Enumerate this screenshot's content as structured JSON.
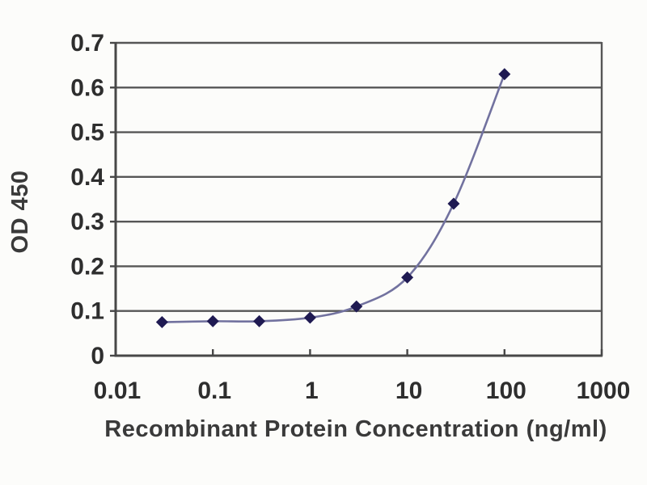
{
  "figure": {
    "type": "elisa-standard-curve",
    "background_color": "#fcfcfa"
  },
  "chart_data": {
    "type": "line",
    "x_scale": "log",
    "x": [
      0.03,
      0.1,
      0.3,
      1,
      3,
      10,
      30,
      100
    ],
    "y": [
      0.075,
      0.077,
      0.077,
      0.085,
      0.11,
      0.175,
      0.34,
      0.63
    ],
    "xlabel": "Recombinant Protein Concentration (ng/ml)",
    "ylabel": "OD 450",
    "xlim": [
      0.01,
      1000
    ],
    "ylim": [
      0,
      0.7
    ],
    "x_ticks": [
      0.01,
      0.1,
      1,
      10,
      100,
      1000
    ],
    "x_tick_labels": [
      "0.01",
      "0.1",
      "1",
      "10",
      "100",
      "1000"
    ],
    "y_ticks": [
      0,
      0.1,
      0.2,
      0.3,
      0.4,
      0.5,
      0.6,
      0.7
    ],
    "y_tick_labels": [
      "0",
      "0.1",
      "0.2",
      "0.3",
      "0.4",
      "0.5",
      "0.6",
      "0.7"
    ],
    "grid": "horizontal",
    "legend": "none",
    "marker": "diamond",
    "colors": {
      "line": "#72729f",
      "marker": "#1f1a52",
      "grid": "#565656",
      "axis": "#474747",
      "text": "#2e2e2e"
    }
  }
}
